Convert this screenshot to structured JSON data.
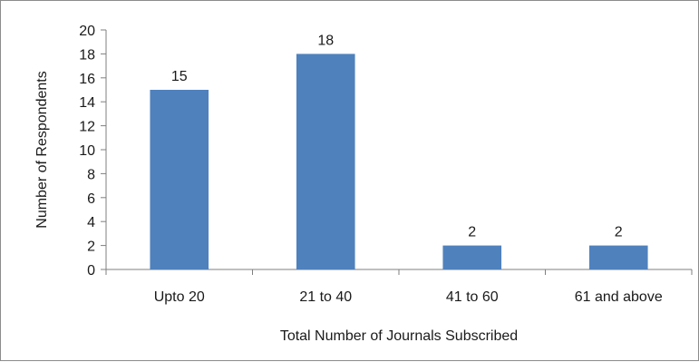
{
  "chart_data": {
    "type": "bar",
    "title": "",
    "xlabel": "Total Number of Journals Subscribed",
    "ylabel": "Number of Respondents",
    "categories": [
      "Upto 20",
      "21 to 40",
      "41 to 60",
      "61 and above"
    ],
    "values": [
      15,
      18,
      2,
      2
    ],
    "data_labels": [
      "15",
      "18",
      "2",
      "2"
    ],
    "ylim": [
      0,
      20
    ],
    "yticks": [
      0,
      2,
      4,
      6,
      8,
      10,
      12,
      14,
      16,
      18,
      20
    ],
    "ytick_labels": [
      "0",
      "2",
      "4",
      "6",
      "8",
      "10",
      "12",
      "14",
      "16",
      "18",
      "20"
    ],
    "grid": false,
    "legend": "none",
    "bar_color": "#4f81bd",
    "axis_color": "#7f7f7f"
  }
}
